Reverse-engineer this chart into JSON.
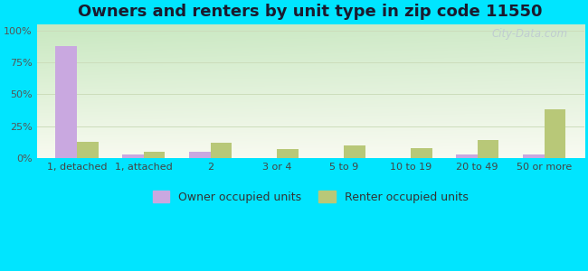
{
  "title": "Owners and renters by unit type in zip code 11550",
  "categories": [
    "1, detached",
    "1, attached",
    "2",
    "3 or 4",
    "5 to 9",
    "10 to 19",
    "20 to 49",
    "50 or more"
  ],
  "owner_values": [
    88,
    3,
    5,
    0,
    0,
    0,
    3,
    3
  ],
  "renter_values": [
    13,
    5,
    12,
    7,
    10,
    8,
    14,
    38
  ],
  "owner_color": "#c9a8e0",
  "renter_color": "#b8c878",
  "background_outer": "#00e5ff",
  "ylabel_ticks": [
    "0%",
    "25%",
    "50%",
    "75%",
    "100%"
  ],
  "ytick_values": [
    0,
    25,
    50,
    75,
    100
  ],
  "ylim": [
    0,
    105
  ],
  "legend_owner": "Owner occupied units",
  "legend_renter": "Renter occupied units",
  "bar_width": 0.32,
  "title_fontsize": 13,
  "tick_fontsize": 8,
  "legend_fontsize": 9,
  "watermark": "City-Data.com",
  "watermark_color": "#c0ccd0"
}
